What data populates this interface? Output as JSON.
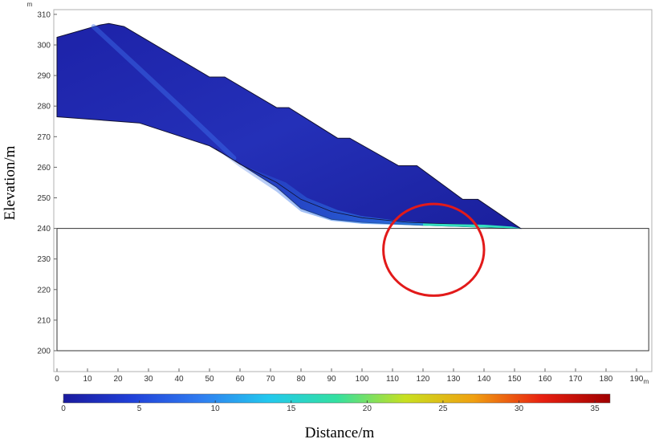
{
  "chart_data": {
    "type": "heatmap",
    "title": "",
    "xlabel": "Distance/m",
    "ylabel": "Elevation/m",
    "xlim": [
      0,
      194
    ],
    "ylim": [
      197,
      313
    ],
    "x_unit": "m",
    "y_unit": "m",
    "x_ticks": [
      0,
      10,
      20,
      30,
      40,
      50,
      60,
      70,
      80,
      90,
      100,
      110,
      120,
      130,
      140,
      150,
      160,
      170,
      180,
      190
    ],
    "y_ticks": [
      200,
      210,
      220,
      230,
      240,
      250,
      260,
      270,
      280,
      290,
      300,
      310
    ],
    "colorbar": {
      "min": 0,
      "max": 36,
      "ticks": [
        0,
        5,
        10,
        15,
        20,
        25,
        30,
        35
      ],
      "colors": [
        "#1a1a9e",
        "#2040d8",
        "#2f7cf0",
        "#22c8ee",
        "#33e0a0",
        "#c8e020",
        "#f0a010",
        "#e82010",
        "#a00000"
      ]
    },
    "domain_outline": [
      [
        0,
        200
      ],
      [
        194,
        200
      ],
      [
        194,
        240
      ],
      [
        152,
        240
      ],
      [
        0,
        240
      ]
    ],
    "landslide_upper": [
      [
        0,
        302.5
      ],
      [
        14,
        306.5
      ],
      [
        17,
        307
      ],
      [
        22,
        306
      ],
      [
        50,
        289.5
      ],
      [
        55,
        289.5
      ],
      [
        72,
        279.5
      ],
      [
        76,
        279.5
      ],
      [
        92,
        269.5
      ],
      [
        96,
        269.5
      ],
      [
        112,
        260.5
      ],
      [
        118,
        260.5
      ],
      [
        133,
        249.5
      ],
      [
        138,
        249.5
      ],
      [
        152,
        240
      ]
    ],
    "landslide_lower": [
      [
        0,
        276.5
      ],
      [
        27,
        274.5
      ],
      [
        50,
        267
      ],
      [
        57,
        263
      ],
      [
        72,
        253.5
      ],
      [
        80,
        246.5
      ],
      [
        90,
        243
      ],
      [
        100,
        242
      ],
      [
        120,
        241
      ],
      [
        152,
        240
      ]
    ],
    "slip_band": [
      [
        52,
        266
      ],
      [
        60,
        261
      ],
      [
        75,
        255
      ],
      [
        82,
        250
      ],
      [
        92,
        246
      ],
      [
        100,
        244
      ],
      [
        112,
        242.5
      ],
      [
        125,
        241.5
      ],
      [
        152,
        240
      ],
      [
        125,
        240.8
      ],
      [
        100,
        241.5
      ],
      [
        90,
        242.5
      ],
      [
        80,
        245.5
      ],
      [
        72,
        252
      ],
      [
        60,
        260
      ]
    ],
    "highlight_ellipse": {
      "cx": 123.5,
      "cy": 233,
      "rx": 16.5,
      "ry": 15,
      "color": "#e21a1a"
    }
  }
}
